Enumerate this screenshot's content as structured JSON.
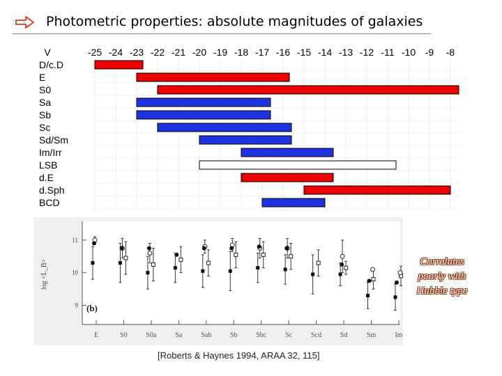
{
  "slide": {
    "title": "Photometric properties: absolute magnitudes of galaxies",
    "arrow_color": "#e23a1a",
    "rule_color": "#7b7bb8",
    "note_lines": [
      "Correlates",
      "poorly with",
      "Hubble type"
    ],
    "note_color": "#8a2a00",
    "citation": "[Roberts & Haynes 1994, ARAA 32, 115]"
  },
  "chart_data": [
    {
      "type": "range-bar",
      "axis_label": "V",
      "x_ticks": [
        "-25",
        "-24",
        "-23",
        "-22",
        "-21",
        "-20",
        "-19",
        "-18",
        "-17",
        "-16",
        "-15",
        "-14",
        "-13",
        "-12",
        "-11",
        "-10",
        "-9",
        "-8"
      ],
      "xlim": [
        -25,
        -8
      ],
      "grid": true,
      "colors": {
        "red": "#ee0000",
        "blue": "#1f33e0",
        "white": "#ffffff"
      },
      "rows": [
        {
          "label": "D/c.D",
          "min": -25,
          "max": -22.7,
          "color": "red"
        },
        {
          "label": "E",
          "min": -23,
          "max": -15.7,
          "color": "red"
        },
        {
          "label": "S0",
          "min": -22,
          "max": -7.6,
          "color": "red"
        },
        {
          "label": "Sa",
          "min": -23,
          "max": -16.6,
          "color": "blue"
        },
        {
          "label": "Sb",
          "min": -23,
          "max": -16.6,
          "color": "blue"
        },
        {
          "label": "Sc",
          "min": -22,
          "max": -15.6,
          "color": "blue"
        },
        {
          "label": "Sd/Sm",
          "min": -20,
          "max": -15.6,
          "color": "blue"
        },
        {
          "label": "Im/Irr",
          "min": -18,
          "max": -13.6,
          "color": "blue"
        },
        {
          "label": "LSB",
          "min": -20,
          "max": -10.6,
          "color": "white"
        },
        {
          "label": "d.E",
          "min": -18,
          "max": -13.6,
          "color": "red"
        },
        {
          "label": "d.Sph",
          "min": -15,
          "max": -8,
          "color": "red"
        },
        {
          "label": "BCD",
          "min": -17,
          "max": -14,
          "color": "blue"
        }
      ]
    },
    {
      "type": "scatter",
      "ylabel": "log <L_B>",
      "panel_label": "(b)",
      "y_ticks": [
        9,
        10,
        11
      ],
      "ylim": [
        8.5,
        11.4
      ],
      "categories": [
        "E",
        "S0",
        "S0a",
        "Sa",
        "Sab",
        "Sb",
        "Sbc",
        "Sc",
        "Scd",
        "Sd",
        "Sm",
        "Im"
      ],
      "series": [
        {
          "marker": "open-circle",
          "values": [
            11.0,
            10.75,
            10.6,
            null,
            10.8,
            10.85,
            10.75,
            10.75,
            null,
            10.5,
            null,
            null
          ],
          "err": [
            0.1,
            0.3,
            0.3,
            null,
            0.2,
            0.2,
            0.3,
            0.3,
            null,
            0.5,
            null,
            null
          ]
        },
        {
          "marker": "filled-circle",
          "values": [
            10.9,
            10.75,
            10.75,
            10.55,
            10.75,
            10.75,
            10.8,
            10.75,
            null,
            10.25,
            9.75,
            9.7
          ]
        },
        {
          "marker": "open-square",
          "values": [
            null,
            10.45,
            10.25,
            10.4,
            10.3,
            10.55,
            10.55,
            10.5,
            10.3,
            10.15,
            9.8,
            9.9
          ],
          "err": [
            null,
            0.5,
            0.5,
            0.4,
            0.4,
            0.4,
            0.4,
            0.4,
            0.4,
            0.2,
            0.3,
            0.3
          ]
        },
        {
          "marker": "filled-square",
          "values": [
            10.3,
            10.3,
            10.0,
            10.15,
            10.05,
            10.05,
            10.15,
            10.1,
            9.95,
            9.95,
            9.3,
            9.25
          ],
          "err": [
            0.5,
            0.6,
            0.5,
            0.45,
            0.5,
            0.6,
            0.45,
            0.45,
            0.6,
            0.35,
            0.4,
            0.4
          ]
        },
        {
          "marker": "open-circle-low",
          "values": [
            null,
            null,
            null,
            null,
            null,
            null,
            null,
            null,
            null,
            null,
            10.1,
            10.0
          ]
        }
      ]
    }
  ]
}
